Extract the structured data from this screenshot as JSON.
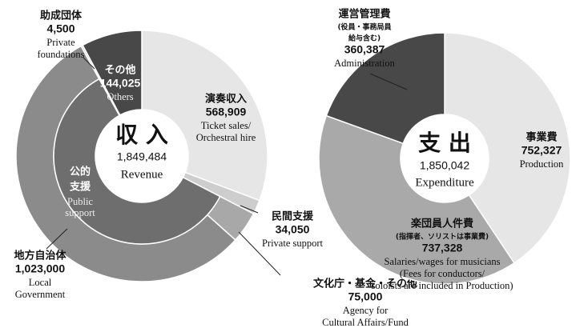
{
  "chart_data": [
    {
      "type": "donut",
      "title": "収 入",
      "total": {
        "value": 1849484,
        "label": "1,849,484"
      },
      "title_en": "Revenue",
      "categories": [
        "演奏収入",
        "民間支援",
        "文化庁・基金・その他",
        "地方自治体",
        "助成団体",
        "その他"
      ],
      "values": [
        568909,
        34050,
        75000,
        1023000,
        4500,
        144025
      ],
      "value_labels": [
        "568,909",
        "34,050",
        "75,000",
        "1,023,000",
        "4,500",
        "144,025"
      ],
      "label_details": [
        {
          "en": [
            "Ticket sales/",
            "Orchestral hire"
          ]
        },
        {
          "en": [
            "Private support"
          ]
        },
        {
          "en": [
            "Agency for",
            "Cultural Affairs/Fund"
          ]
        },
        {
          "en": [
            "Local",
            "Government"
          ]
        },
        {
          "en": [
            "Private",
            "foundations"
          ]
        },
        {
          "en": [
            "Others"
          ]
        }
      ],
      "colors": [
        "#e6e6e6",
        "#cdcdcd",
        "#a8a8a8",
        "#8b8b8b",
        "#d8d8d8",
        "#484848"
      ],
      "inner": {
        "name": [
          "公的",
          "支援"
        ],
        "name_en": [
          "Public",
          "support"
        ],
        "members": [
          "文化庁・基金・その他",
          "地方自治体"
        ],
        "color": "#6e6e6e"
      }
    },
    {
      "type": "donut",
      "title": "支 出",
      "total": {
        "value": 1850042,
        "label": "1,850,042"
      },
      "title_en": "Expenditure",
      "categories": [
        "事業費",
        "楽団員人件費",
        "運営管理費"
      ],
      "values": [
        752327,
        737328,
        360387
      ],
      "value_labels": [
        "752,327",
        "737,328",
        "360,387"
      ],
      "label_details": [
        {
          "en": [
            "Production"
          ]
        },
        {
          "note": [
            "(指揮者、ソリストは事業費)"
          ],
          "en": [
            "Salaries/wages for musicians",
            "(Fees for conductors/",
            "soloists are included in Production)"
          ]
        },
        {
          "note": [
            "(役員・事務局員",
            "給与含む)"
          ],
          "en": [
            "Administration"
          ]
        }
      ],
      "colors": [
        "#e6e6e6",
        "#a9a9a9",
        "#484848"
      ]
    }
  ]
}
